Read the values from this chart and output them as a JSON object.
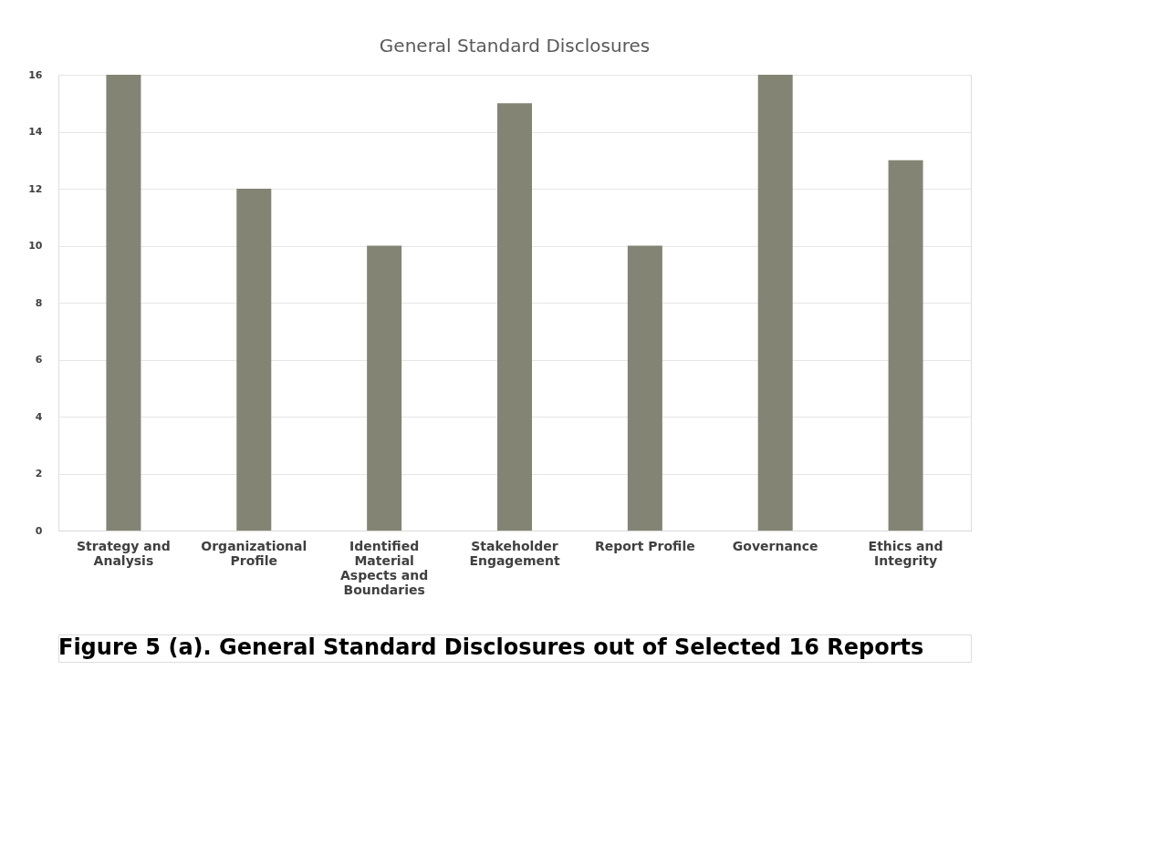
{
  "chart_data": {
    "type": "bar",
    "title": "General Standard Disclosures",
    "categories": [
      "Strategy and Analysis",
      "Organizational Profile",
      "Identified Material Aspects and Boundaries",
      "Stakeholder Engagement",
      "Report Profile",
      "Governance",
      "Ethics and Integrity"
    ],
    "values": [
      16,
      12,
      10,
      15,
      10,
      16,
      13
    ],
    "color": "#848474",
    "ylim": [
      0,
      16
    ],
    "yticks": [
      0,
      2,
      4,
      6,
      8,
      10,
      12,
      14,
      16
    ],
    "grid": "y",
    "annotations": [
      "Figure 5 (a). General Standard Disclosures out of Selected 16 Reports"
    ]
  }
}
